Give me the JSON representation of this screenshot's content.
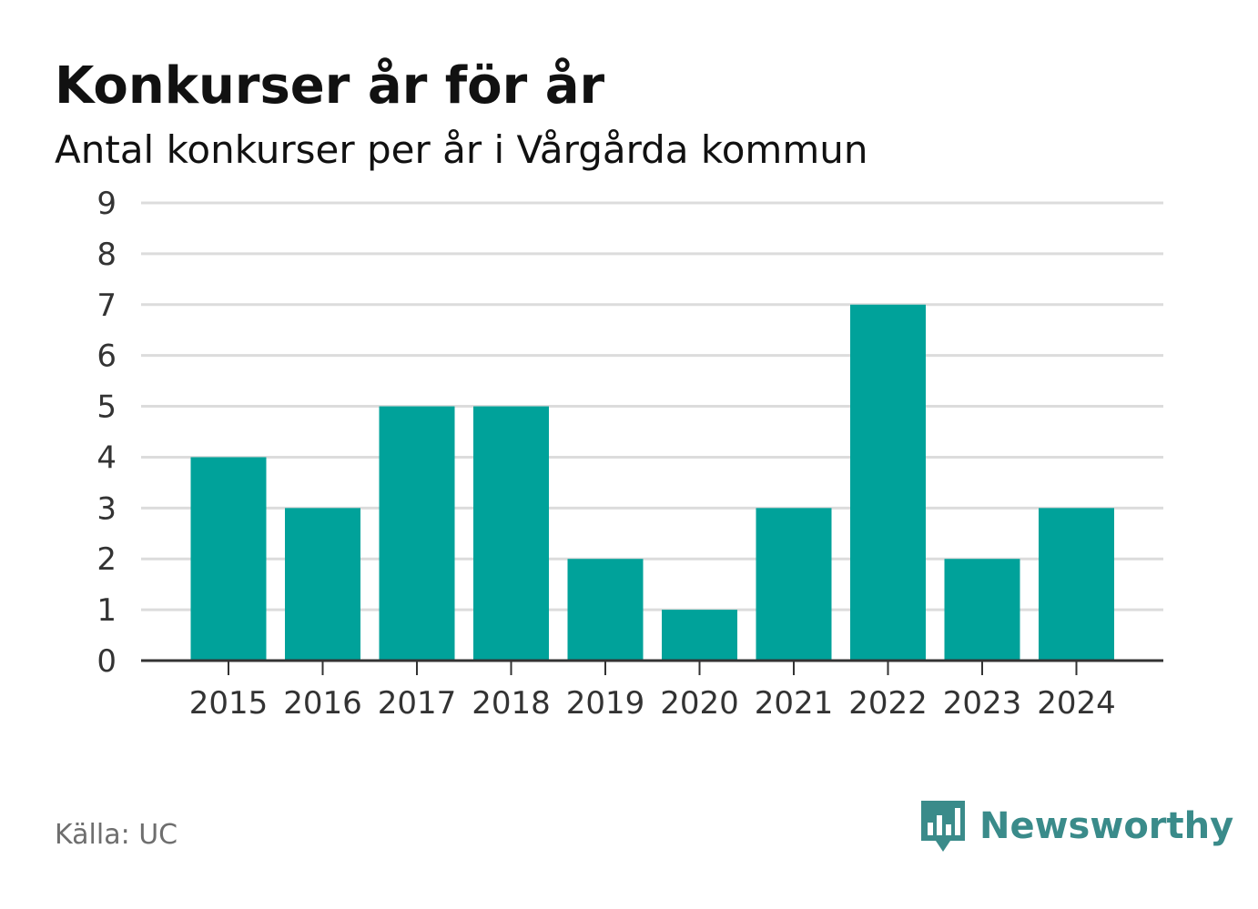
{
  "header": {
    "title": "Konkurser år för år",
    "subtitle": "Antal konkurser per år i Vårgårda kommun"
  },
  "footer": {
    "source": "Källa: UC",
    "brand": "Newsworthy",
    "brand_icon": "bar-chart-speech-bubble-icon"
  },
  "colors": {
    "bar": "#00a29a",
    "grid": "#dcdcdc",
    "axis": "#333333",
    "brand": "#3a8b8a"
  },
  "chart_data": {
    "type": "bar",
    "categories": [
      "2015",
      "2016",
      "2017",
      "2018",
      "2019",
      "2020",
      "2021",
      "2022",
      "2023",
      "2024"
    ],
    "values": [
      4,
      3,
      5,
      5,
      2,
      1,
      3,
      7,
      2,
      3
    ],
    "title": "Konkurser år för år",
    "subtitle": "Antal konkurser per år i Vårgårda kommun",
    "ylim": [
      0,
      9
    ],
    "yticks": [
      0,
      1,
      2,
      3,
      4,
      5,
      6,
      7,
      8,
      9
    ],
    "grid": true,
    "legend": "none"
  }
}
